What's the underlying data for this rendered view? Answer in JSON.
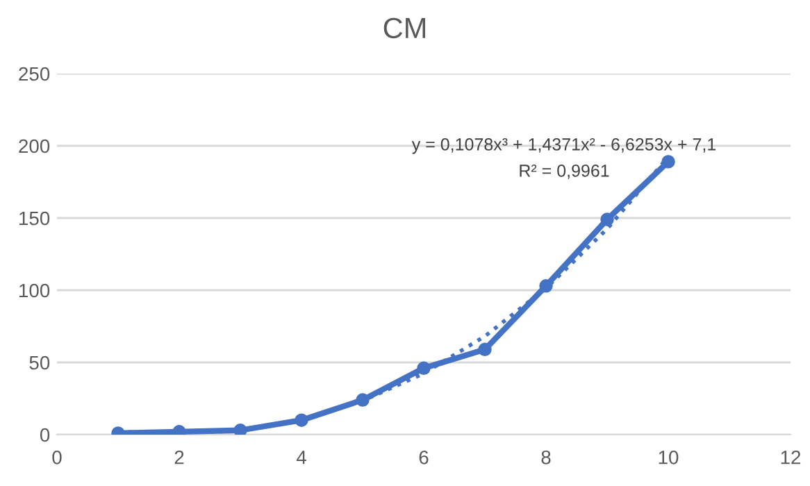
{
  "chart_data": {
    "type": "line",
    "title": "CM",
    "x": [
      1,
      2,
      3,
      4,
      5,
      6,
      7,
      8,
      9,
      10
    ],
    "series": [
      {
        "color": "#4472c4",
        "values": [
          1,
          2,
          3,
          10,
          24,
          46,
          59,
          103,
          149,
          189
        ],
        "marker": "circle",
        "line_style": "solid"
      },
      {
        "type": "line",
        "color": "#4472c4",
        "x": [
          1,
          2,
          3,
          4,
          5,
          6,
          7,
          8,
          9,
          10
        ],
        "values": [
          2,
          0.5,
          3,
          10.5,
          23.4,
          42.4,
          68.1,
          101.3,
          142.5,
          192.4
        ],
        "marker": "none",
        "line_style": "dotted"
      }
    ],
    "annotations": [
      "y = 0,1078x³ + 1,4371x² - 6,6253x + 7,1",
      "R² = 0,9961"
    ],
    "xlim": [
      0,
      12
    ],
    "xticks": [
      0,
      2,
      4,
      6,
      8,
      10,
      12
    ],
    "ylim": [
      0,
      250
    ],
    "yticks": [
      0,
      50,
      100,
      150,
      200,
      250
    ],
    "grid": "y",
    "legend": false
  }
}
